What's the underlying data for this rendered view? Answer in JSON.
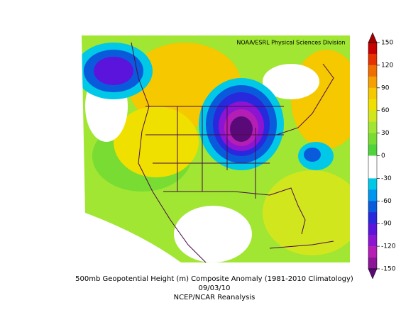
{
  "credit": "NOAA/ESRL Physical Sciences Division",
  "caption": [
    "500mb Geopotential Height (m) Composite Anomaly (1981-2010 Climatology)",
    "09/03/10",
    "NCEP/NCAR Reanalysis"
  ],
  "colorbar": {
    "range": [
      -150,
      150
    ],
    "ticks": [
      150,
      120,
      90,
      60,
      30,
      0,
      -30,
      -60,
      -90,
      -120,
      -150
    ],
    "colors": [
      "#c80000",
      "#e63200",
      "#f06e00",
      "#f5a000",
      "#f5c800",
      "#f0e000",
      "#d2e61e",
      "#a0e632",
      "#78dc32",
      "#50d23c",
      "#ffffff",
      "#ffffff",
      "#00c8e6",
      "#0096f0",
      "#0a5adc",
      "#2828dc",
      "#5a14dc",
      "#8c14d2",
      "#b41eb4",
      "#8c1496"
    ],
    "over_color": "#a00000",
    "under_color": "#5a0a78"
  }
}
